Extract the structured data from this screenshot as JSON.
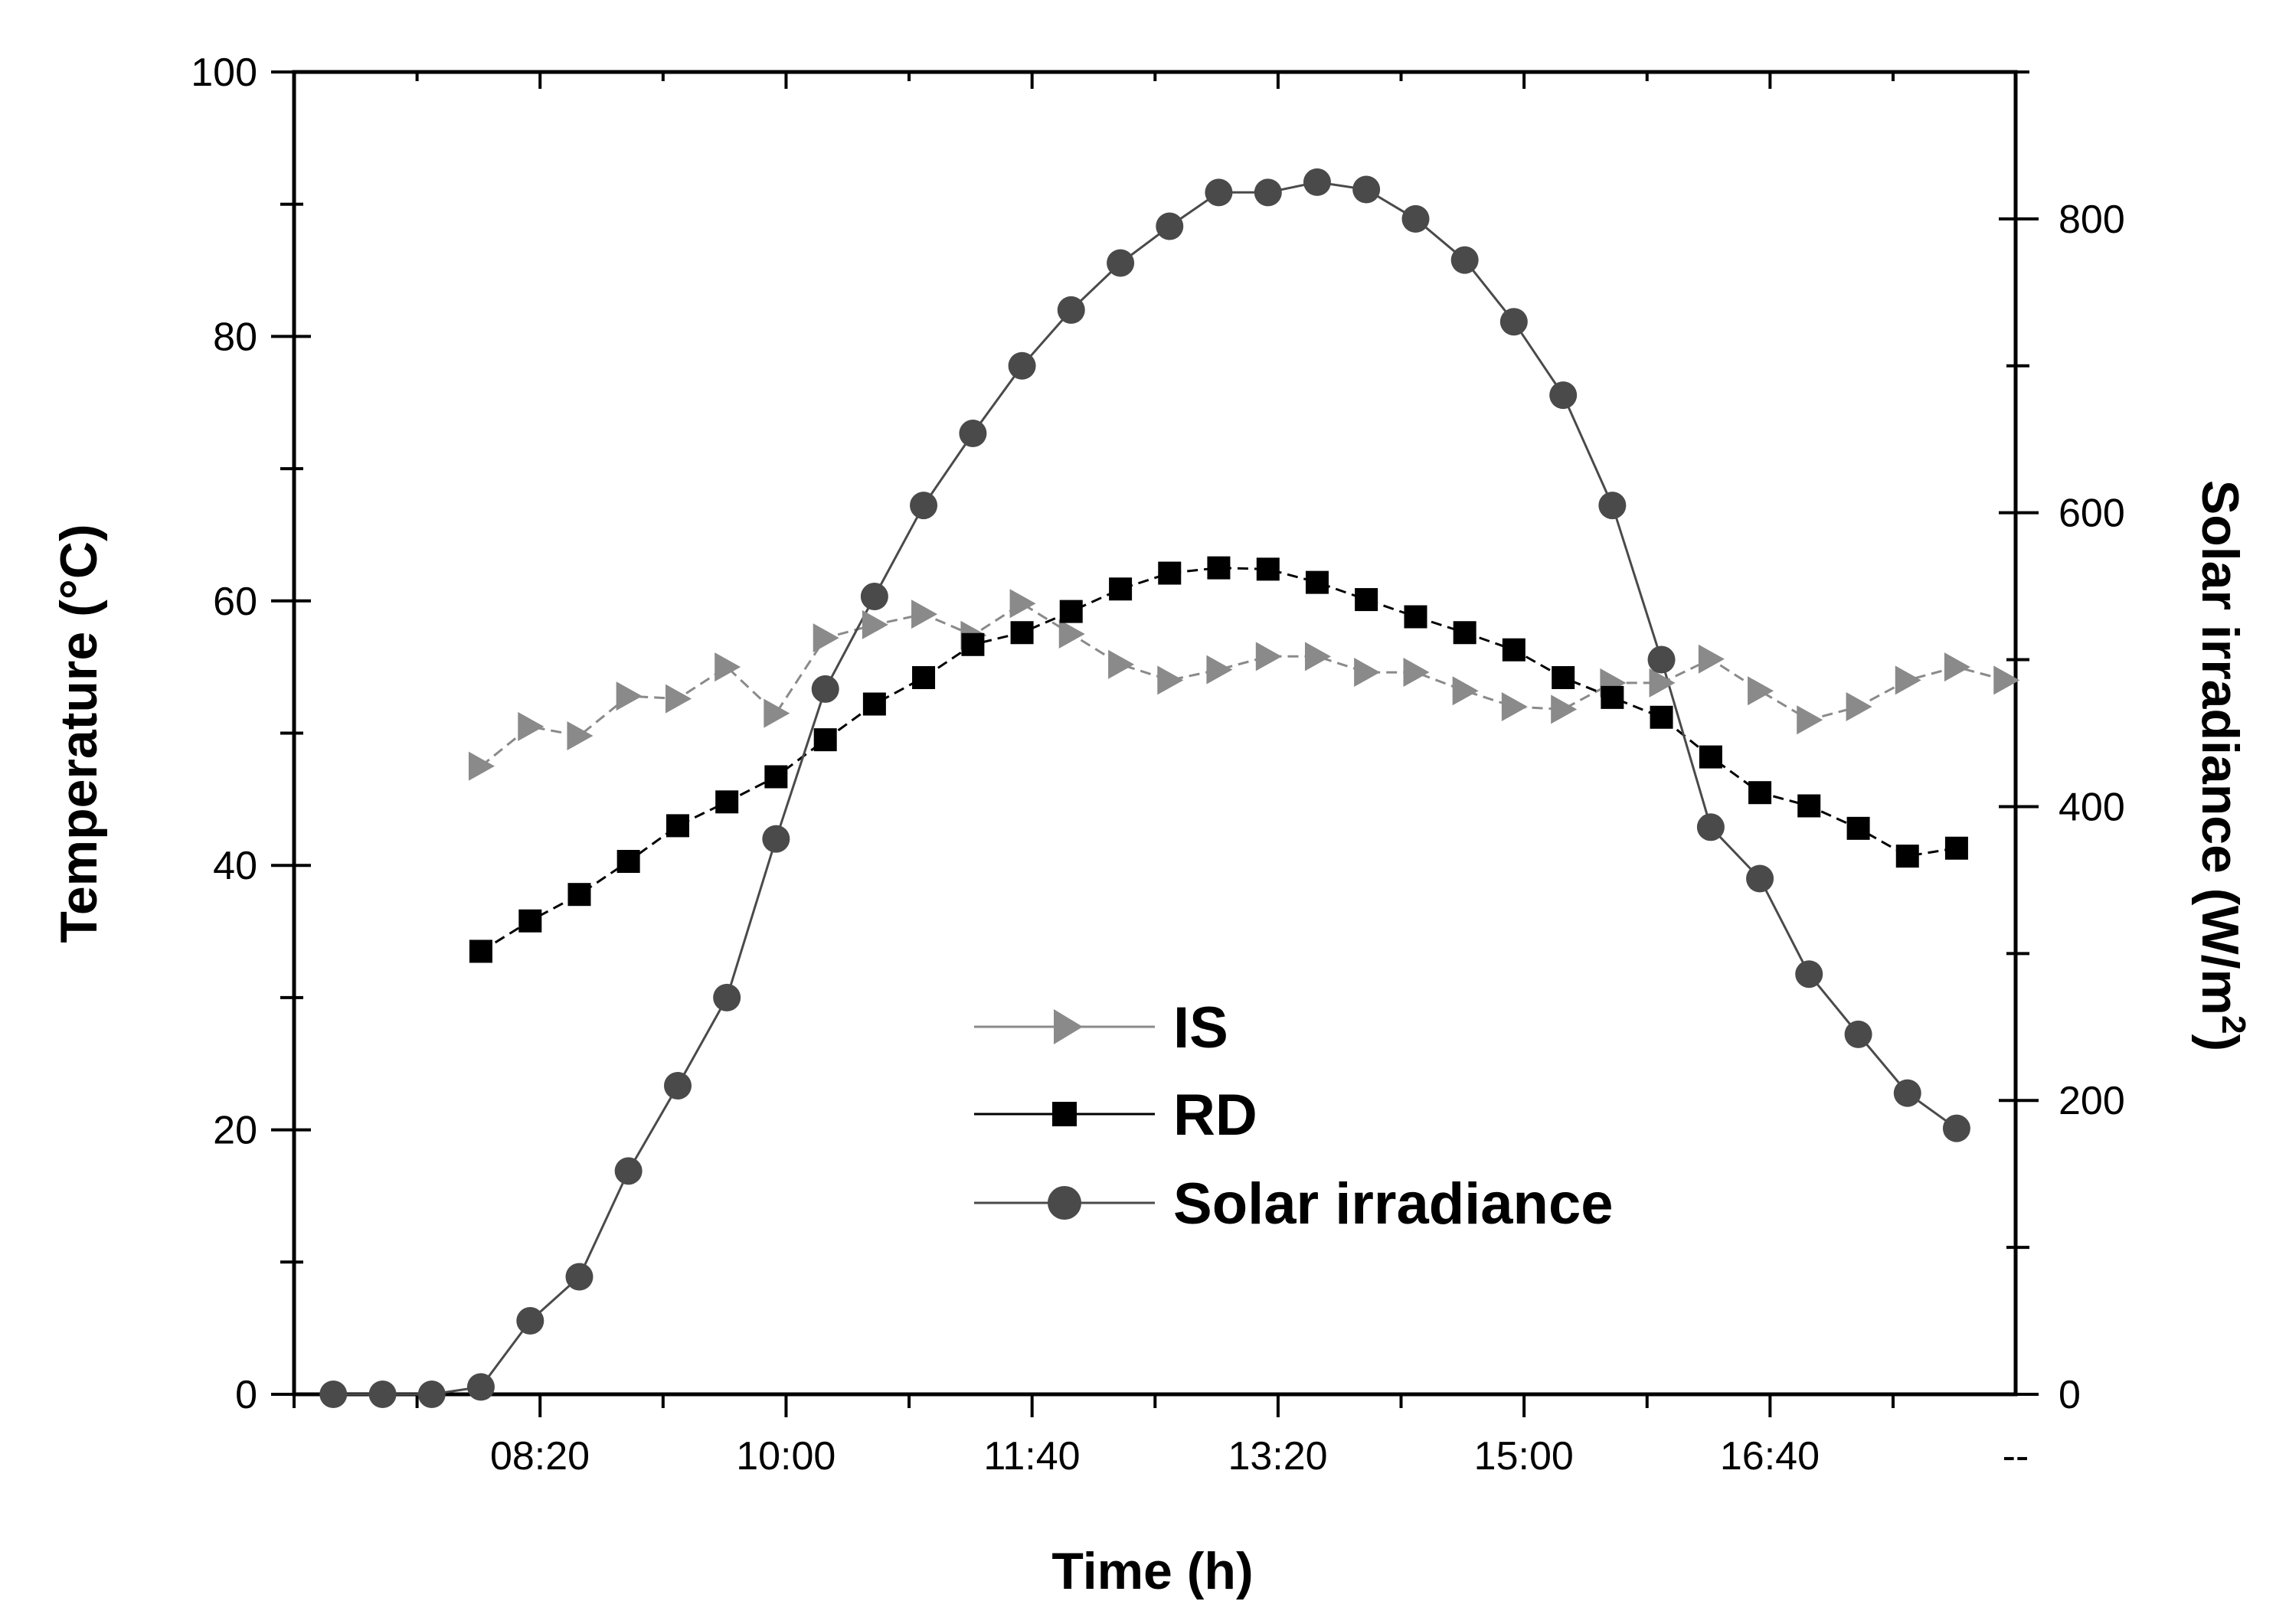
{
  "chart_data": {
    "type": "line",
    "title": "",
    "xlabel": "Time (h)",
    "ylabel": "Temperature (°C)",
    "y2label": "Solar irradiance (W/m",
    "y2label_sup": "2",
    "y2label_close": ")",
    "x_tick_labels": [
      "08:20",
      "10:00",
      "11:40",
      "13:20",
      "15:00",
      "16:40",
      "--"
    ],
    "x_tick_values": [
      8.333,
      10.0,
      11.667,
      13.333,
      15.0,
      16.667,
      18.333
    ],
    "xlim": [
      6.667,
      18.333
    ],
    "ylim": [
      0,
      100
    ],
    "yticks": [
      0,
      20,
      40,
      60,
      80,
      100
    ],
    "y2lim": [
      0,
      900
    ],
    "y2ticks": [
      0,
      200,
      400,
      600,
      800
    ],
    "legend_position": "center",
    "series": [
      {
        "name": "IS",
        "axis": "left",
        "marker": "triangle-right",
        "color": "#8a8a8a",
        "x": [
          7.933,
          8.267,
          8.6,
          8.933,
          9.267,
          9.6,
          9.933,
          10.267,
          10.6,
          10.933,
          11.267,
          11.6,
          11.933,
          12.267,
          12.6,
          12.933,
          13.267,
          13.6,
          13.933,
          14.267,
          14.6,
          14.933,
          15.267,
          15.6,
          15.933,
          16.267,
          16.6,
          16.933,
          17.267,
          17.6,
          17.933,
          18.267
        ],
        "y": [
          47.5,
          50.5,
          49.8,
          52.8,
          52.6,
          55.0,
          51.5,
          57.2,
          58.2,
          59.0,
          57.4,
          59.8,
          57.5,
          55.2,
          54.0,
          54.8,
          55.8,
          55.8,
          54.6,
          54.6,
          53.2,
          52.0,
          51.8,
          53.8,
          53.8,
          55.6,
          53.2,
          51.0,
          52.0,
          54.0,
          55.0,
          54.0
        ]
      },
      {
        "name": "RD",
        "axis": "left",
        "marker": "square",
        "color": "#000000",
        "x": [
          7.933,
          8.267,
          8.6,
          8.933,
          9.267,
          9.6,
          9.933,
          10.267,
          10.6,
          10.933,
          11.267,
          11.6,
          11.933,
          12.267,
          12.6,
          12.933,
          13.267,
          13.6,
          13.933,
          14.267,
          14.6,
          14.933,
          15.267,
          15.6,
          15.933,
          16.267,
          16.6,
          16.933,
          17.267,
          17.6,
          17.933
        ],
        "y": [
          33.5,
          35.8,
          37.8,
          40.3,
          43.0,
          44.8,
          46.7,
          49.5,
          52.2,
          54.2,
          56.7,
          57.6,
          59.2,
          60.9,
          62.1,
          62.5,
          62.4,
          61.4,
          60.1,
          58.8,
          57.6,
          56.3,
          54.2,
          52.7,
          51.2,
          48.2,
          45.5,
          44.5,
          42.8,
          40.7,
          41.3
        ]
      },
      {
        "name": "Solar irradiance",
        "axis": "right",
        "marker": "circle",
        "color": "#4a4a4a",
        "x": [
          6.933,
          7.267,
          7.6,
          7.933,
          8.267,
          8.6,
          8.933,
          9.267,
          9.6,
          9.933,
          10.267,
          10.6,
          10.933,
          11.267,
          11.6,
          11.933,
          12.267,
          12.6,
          12.933,
          13.267,
          13.6,
          13.933,
          14.267,
          14.6,
          14.933,
          15.267,
          15.6,
          15.933,
          16.267,
          16.6,
          16.933,
          17.267,
          17.6,
          17.933
        ],
        "y": [
          0,
          0,
          0,
          5,
          50,
          80,
          152,
          210,
          270,
          378,
          480,
          543,
          605,
          654,
          700,
          738,
          770,
          795,
          818,
          818,
          825,
          820,
          800,
          772,
          730,
          680,
          605,
          500,
          386,
          351,
          286,
          245,
          205,
          181
        ]
      }
    ]
  }
}
